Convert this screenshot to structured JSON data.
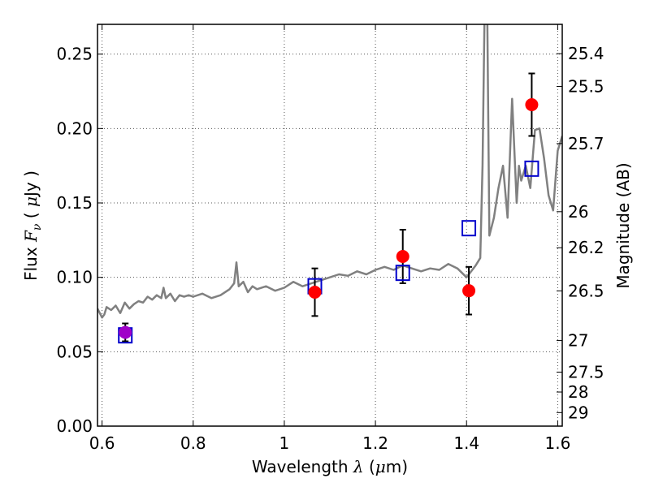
{
  "chart_data": {
    "type": "scatter",
    "xlabel": "Wavelength  λ (μm)",
    "ylabel_left": "Flux  F_ν  ( μJy )",
    "ylabel_right": "Magnitude (AB)",
    "xlim": [
      0.59,
      1.61
    ],
    "ylim": [
      0.0,
      0.27
    ],
    "grid": true,
    "x_ticks": [
      0.6,
      0.8,
      1.0,
      1.2,
      1.4,
      1.6
    ],
    "x_tick_labels": [
      "0.6",
      "0.8",
      "1",
      "1.2",
      "1.4",
      "1.6"
    ],
    "y_ticks": [
      0.0,
      0.05,
      0.1,
      0.15,
      0.2,
      0.25
    ],
    "y_tick_labels": [
      "0.00",
      "0.05",
      "0.10",
      "0.15",
      "0.20",
      "0.25"
    ],
    "right_ticks": [
      {
        "label": "25.4",
        "flux": 0.2503
      },
      {
        "label": "25.5",
        "flux": 0.2283
      },
      {
        "label": "25.7",
        "flux": 0.1899
      },
      {
        "label": "26",
        "flux": 0.1441
      },
      {
        "label": "26.2",
        "flux": 0.1199
      },
      {
        "label": "26.5",
        "flux": 0.0909
      },
      {
        "label": "27",
        "flux": 0.0575
      },
      {
        "label": "27.5",
        "flux": 0.0363
      },
      {
        "label": "28",
        "flux": 0.0229
      },
      {
        "label": "29",
        "flux": 0.0091
      }
    ],
    "colors": {
      "model": "#808080",
      "observed": "#ff0000",
      "observed_first": "#a000c8",
      "model_points": "#0000cc",
      "errorbar": "#000000",
      "grid": "#555555"
    },
    "series": [
      {
        "kind": "line",
        "x": [
          0.59,
          0.6,
          0.605,
          0.61,
          0.62,
          0.63,
          0.64,
          0.65,
          0.66,
          0.67,
          0.68,
          0.69,
          0.7,
          0.71,
          0.72,
          0.73,
          0.735,
          0.74,
          0.75,
          0.76,
          0.77,
          0.78,
          0.79,
          0.8,
          0.82,
          0.84,
          0.86,
          0.88,
          0.89,
          0.895,
          0.9,
          0.91,
          0.92,
          0.93,
          0.94,
          0.96,
          0.98,
          1.0,
          1.02,
          1.04,
          1.06,
          1.08,
          1.1,
          1.12,
          1.14,
          1.16,
          1.18,
          1.2,
          1.22,
          1.24,
          1.26,
          1.28,
          1.3,
          1.32,
          1.34,
          1.36,
          1.38,
          1.4,
          1.42,
          1.43,
          1.435,
          1.44,
          1.445,
          1.45,
          1.46,
          1.47,
          1.48,
          1.49,
          1.5,
          1.51,
          1.515,
          1.52,
          1.53,
          1.54,
          1.55,
          1.56,
          1.57,
          1.58,
          1.59,
          1.6,
          1.61
        ],
        "y": [
          0.079,
          0.073,
          0.075,
          0.08,
          0.078,
          0.081,
          0.076,
          0.083,
          0.079,
          0.082,
          0.084,
          0.083,
          0.087,
          0.085,
          0.088,
          0.086,
          0.093,
          0.086,
          0.089,
          0.084,
          0.088,
          0.087,
          0.088,
          0.087,
          0.089,
          0.086,
          0.088,
          0.092,
          0.096,
          0.11,
          0.094,
          0.097,
          0.09,
          0.094,
          0.092,
          0.094,
          0.091,
          0.093,
          0.097,
          0.094,
          0.096,
          0.098,
          0.1,
          0.102,
          0.101,
          0.104,
          0.102,
          0.105,
          0.107,
          0.105,
          0.108,
          0.106,
          0.104,
          0.106,
          0.105,
          0.109,
          0.106,
          0.1,
          0.108,
          0.113,
          0.175,
          0.29,
          0.29,
          0.128,
          0.14,
          0.16,
          0.175,
          0.14,
          0.22,
          0.15,
          0.175,
          0.165,
          0.175,
          0.16,
          0.199,
          0.2,
          0.18,
          0.155,
          0.145,
          0.185,
          0.195
        ]
      },
      {
        "kind": "model_points",
        "x": [
          0.651,
          1.067,
          1.26,
          1.405,
          1.543
        ],
        "y": [
          0.061,
          0.094,
          0.103,
          0.133,
          0.173
        ]
      },
      {
        "kind": "observed",
        "x": [
          0.651,
          1.067,
          1.26,
          1.405,
          1.543
        ],
        "y": [
          0.063,
          0.09,
          0.114,
          0.091,
          0.216
        ],
        "err": [
          0.006,
          0.016,
          0.018,
          0.016,
          0.021
        ]
      }
    ]
  }
}
